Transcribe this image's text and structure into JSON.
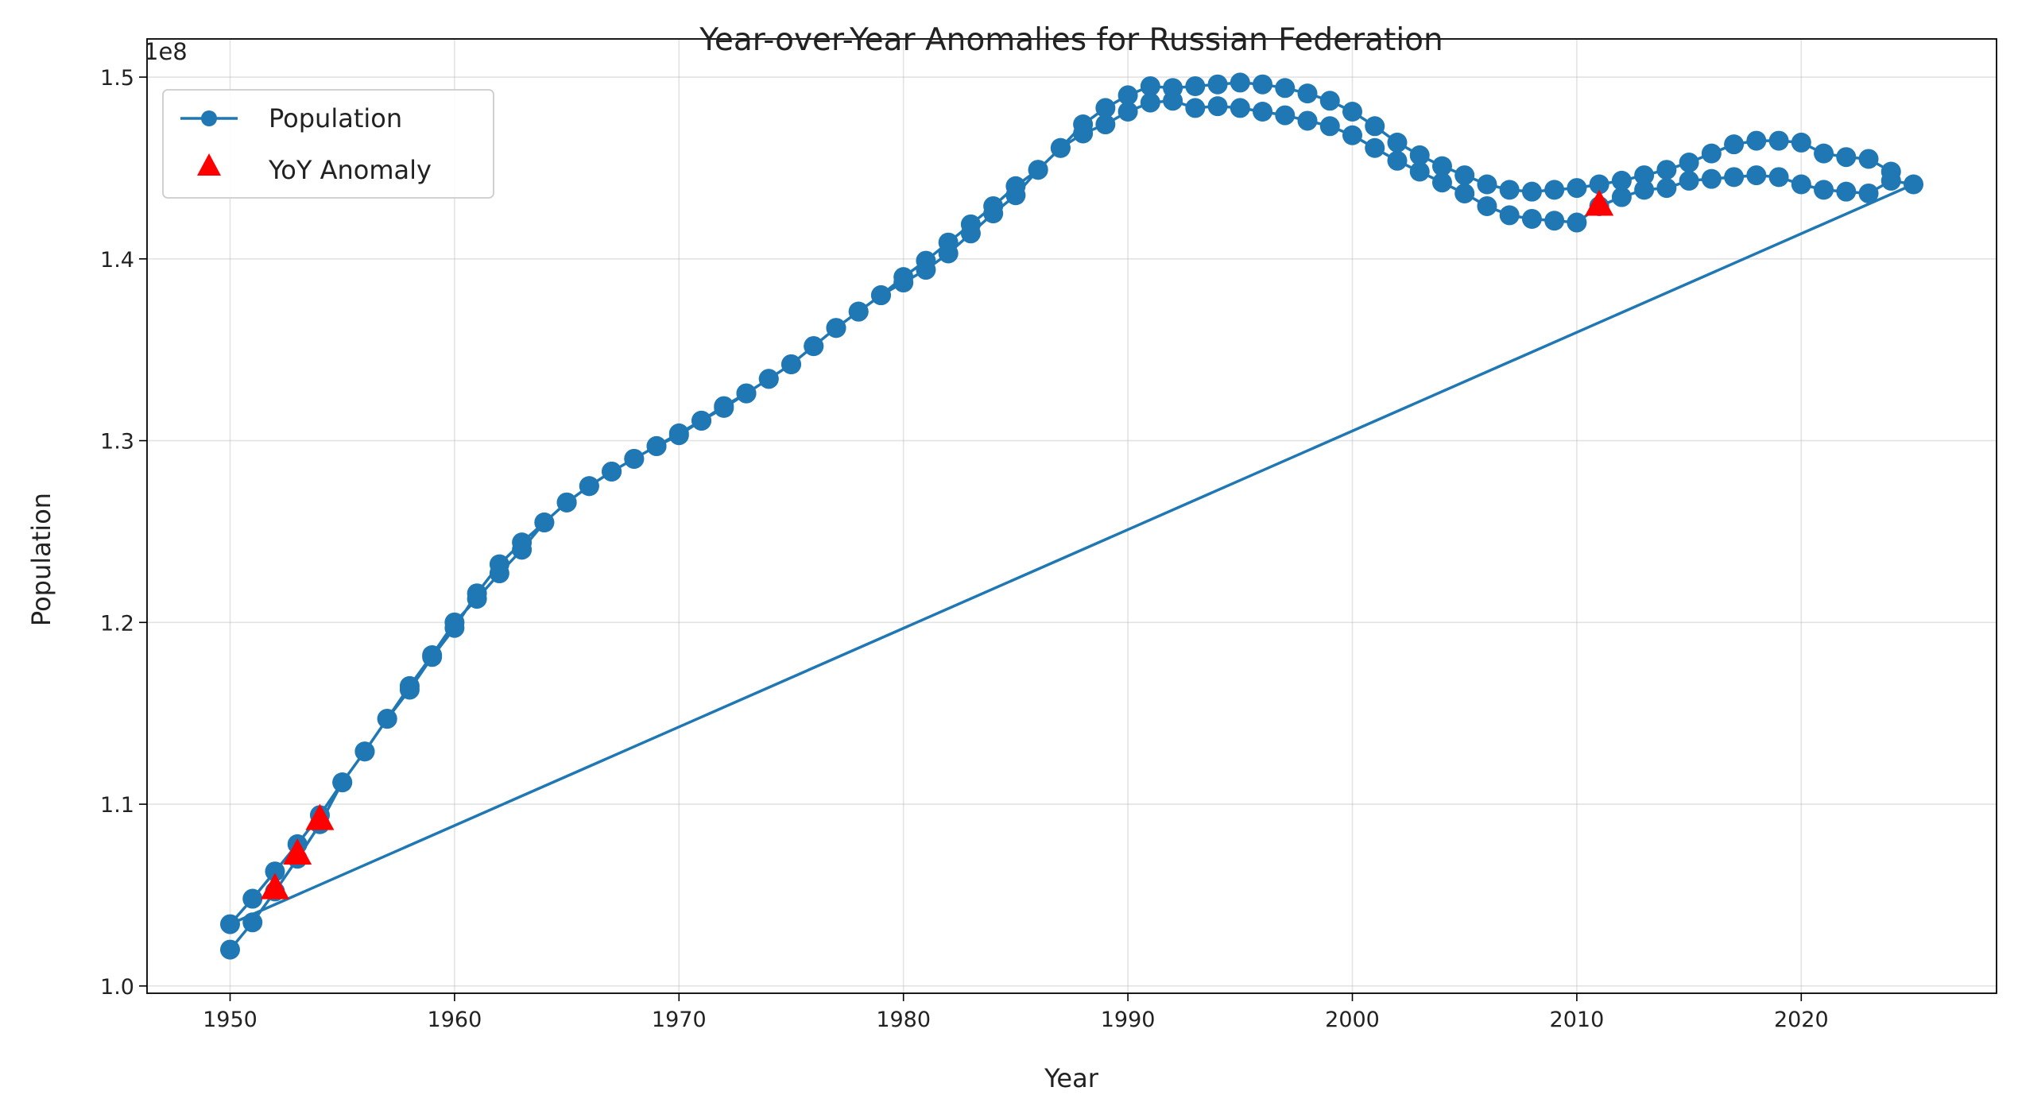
{
  "chart_data": {
    "type": "line",
    "title": "Year-over-Year Anomalies for Russian Federation",
    "xlabel": "Year",
    "ylabel": "Population",
    "y_offset_label": "1e8",
    "xlim": [
      1946.3,
      2028.7
    ],
    "ylim": [
      99600000,
      152100000
    ],
    "x_ticks": [
      1950,
      1960,
      1970,
      1980,
      1990,
      2000,
      2010,
      2020
    ],
    "x_tick_labels": [
      "1950",
      "1960",
      "1970",
      "1980",
      "1990",
      "2000",
      "2010",
      "2020"
    ],
    "y_ticks": [
      100000000,
      110000000,
      120000000,
      130000000,
      140000000,
      150000000
    ],
    "y_tick_labels": [
      "1.0",
      "1.1",
      "1.2",
      "1.3",
      "1.4",
      "1.5"
    ],
    "grid": true,
    "legend": {
      "position": "top-left",
      "entries": [
        {
          "label": "Population",
          "marker": "circle",
          "color": "#1f77b4"
        },
        {
          "label": "YoY Anomaly",
          "marker": "triangle",
          "color": "#ff0000"
        }
      ]
    },
    "series": [
      {
        "name": "Population",
        "color": "#1f77b4",
        "x": [
          1950,
          1951,
          1952,
          1953,
          1954,
          1955,
          1956,
          1957,
          1958,
          1959,
          1960,
          1961,
          1962,
          1963,
          1964,
          1965,
          1966,
          1967,
          1968,
          1969,
          1970,
          1971,
          1972,
          1973,
          1974,
          1975,
          1976,
          1977,
          1978,
          1979,
          1980,
          1981,
          1982,
          1983,
          1984,
          1985,
          1986,
          1987,
          1988,
          1989,
          1990,
          1991,
          1992,
          1993,
          1994,
          1995,
          1996,
          1997,
          1998,
          1999,
          2000,
          2001,
          2002,
          2003,
          2004,
          2005,
          2006,
          2007,
          2008,
          2009,
          2010,
          2011,
          2012,
          2013,
          2014,
          2015,
          2016,
          2017,
          2018,
          2019,
          2020,
          2021,
          2022,
          2023,
          2024,
          2025,
          1950,
          1951,
          1952,
          1953,
          1954,
          1955,
          1956,
          1957,
          1958,
          1959,
          1960,
          1961,
          1962,
          1963,
          1964,
          1965,
          1966,
          1967,
          1968,
          1969,
          1970,
          1971,
          1972,
          1973,
          1974,
          1975,
          1976,
          1977,
          1978,
          1979,
          1980,
          1981,
          1982,
          1983,
          1984,
          1985,
          1986,
          1987,
          1988,
          1989,
          1990,
          1991,
          1992,
          1993,
          1994,
          1995,
          1996,
          1997,
          1998,
          1999,
          2000,
          2001,
          2002,
          2003,
          2004,
          2005,
          2006,
          2007,
          2008,
          2009,
          2010,
          2011,
          2012,
          2013,
          2014,
          2015,
          2016,
          2017,
          2018,
          2019,
          2020,
          2021,
          2022,
          2023,
          2024
        ],
        "y": [
          102000000,
          103500000,
          105200000,
          107000000,
          108900000,
          111200000,
          112900000,
          114700000,
          116500000,
          118200000,
          120000000,
          121300000,
          122700000,
          124000000,
          125500000,
          126600000,
          127500000,
          128300000,
          129000000,
          129700000,
          130300000,
          131100000,
          131800000,
          132600000,
          133400000,
          134200000,
          135200000,
          136200000,
          137100000,
          138000000,
          138700000,
          139400000,
          140300000,
          141400000,
          142500000,
          143500000,
          144900000,
          146100000,
          146900000,
          147400000,
          148100000,
          148600000,
          148700000,
          148300000,
          148400000,
          148300000,
          148100000,
          147900000,
          147600000,
          147300000,
          146800000,
          146100000,
          145400000,
          144800000,
          144200000,
          143600000,
          142900000,
          142400000,
          142200000,
          142100000,
          142000000,
          142900000,
          143400000,
          143800000,
          143900000,
          144300000,
          144400000,
          144500000,
          144600000,
          144500000,
          144100000,
          143800000,
          143700000,
          143600000,
          144300000,
          144100000,
          103400000,
          104800000,
          106300000,
          107800000,
          109400000,
          111200000,
          112900000,
          114700000,
          116300000,
          118100000,
          119700000,
          121600000,
          123200000,
          124400000,
          125500000,
          126600000,
          127500000,
          128300000,
          129000000,
          129700000,
          130400000,
          131100000,
          131900000,
          132600000,
          133400000,
          134200000,
          135200000,
          136200000,
          137100000,
          138000000,
          139000000,
          139900000,
          140900000,
          141900000,
          142900000,
          144000000,
          144900000,
          146100000,
          147400000,
          148300000,
          149000000,
          149500000,
          149400000,
          149500000,
          149600000,
          149700000,
          149600000,
          149400000,
          149100000,
          148700000,
          148100000,
          147300000,
          146400000,
          145700000,
          145100000,
          144600000,
          144100000,
          143800000,
          143700000,
          143800000,
          143900000,
          144100000,
          144300000,
          144600000,
          144900000,
          145300000,
          145800000,
          146300000,
          146500000,
          146500000,
          146400000,
          145800000,
          145600000,
          145500000,
          144800000
        ]
      },
      {
        "name": "YoY Anomaly",
        "color": "#ff0000",
        "x": [
          1952,
          1953,
          1954,
          2011
        ],
        "y": [
          105300000,
          107200000,
          109100000,
          142900000
        ]
      }
    ]
  }
}
